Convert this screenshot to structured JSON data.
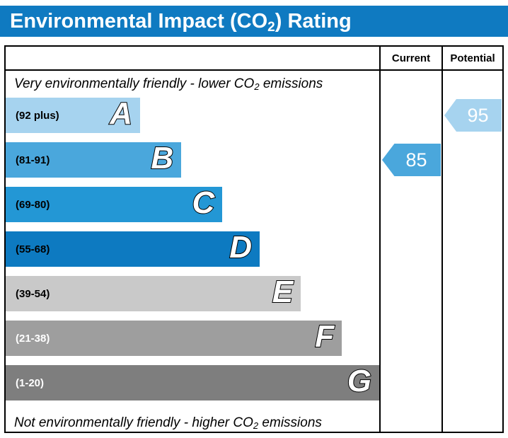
{
  "title": {
    "pre": "Environmental Impact (CO",
    "sub": "2",
    "post": ") Rating"
  },
  "header": {
    "current": "Current",
    "potential": "Potential"
  },
  "captions": {
    "top": {
      "pre": "Very environmentally friendly - lower CO",
      "sub": "2",
      "post": " emissions"
    },
    "bottom": {
      "pre": "Not environmentally friendly - higher CO",
      "sub": "2",
      "post": " emissions"
    }
  },
  "colors": {
    "title_bg": "#0f7ac1",
    "border": "#000000"
  },
  "chart_data": {
    "type": "bar",
    "title": "Environmental Impact (CO2) Rating",
    "bands": [
      {
        "letter": "A",
        "range": "(92 plus)",
        "color": "#a6d3ef",
        "width_pct": 36,
        "text_color": "#000000"
      },
      {
        "letter": "B",
        "range": "(81-91)",
        "color": "#4aa7dc",
        "width_pct": 47,
        "text_color": "#000000"
      },
      {
        "letter": "C",
        "range": "(69-80)",
        "color": "#2397d5",
        "width_pct": 58,
        "text_color": "#000000"
      },
      {
        "letter": "D",
        "range": "(55-68)",
        "color": "#0d7ac1",
        "width_pct": 68,
        "text_color": "#000000"
      },
      {
        "letter": "E",
        "range": "(39-54)",
        "color": "#c9c9c9",
        "width_pct": 79,
        "text_color": "#000000"
      },
      {
        "letter": "F",
        "range": "(21-38)",
        "color": "#9e9e9e",
        "width_pct": 90,
        "text_color": "#ffffff"
      },
      {
        "letter": "G",
        "range": "(1-20)",
        "color": "#7e7e7e",
        "width_pct": 100,
        "text_color": "#ffffff"
      }
    ],
    "current": {
      "value": "85",
      "band_index": 1,
      "color": "#4aa7dc"
    },
    "potential": {
      "value": "95",
      "band_index": 0,
      "color": "#a6d3ef"
    }
  }
}
